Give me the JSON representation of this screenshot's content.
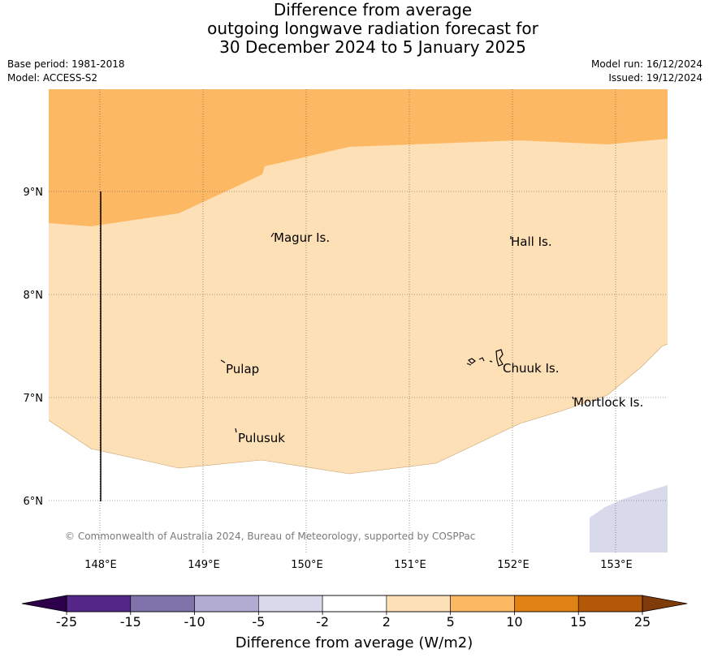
{
  "title": {
    "line1": "Difference from average",
    "line2": "outgoing longwave radiation forecast for",
    "line3": "30 December 2024 to 5 January 2025"
  },
  "meta_left": {
    "base_period": "Base period: 1981-2018",
    "model": "Model: ACCESS-S2"
  },
  "meta_right": {
    "model_run": "Model run: 16/12/2024",
    "issued": "Issued: 19/12/2024"
  },
  "map": {
    "lat_ticks": [
      "9°N",
      "8°N",
      "7°N",
      "6°N"
    ],
    "lon_ticks": [
      "148°E",
      "149°E",
      "150°E",
      "151°E",
      "152°E",
      "153°E"
    ],
    "places": {
      "magur": "Magur Is.",
      "hall": "Hall Is.",
      "pulap": "Pulap",
      "chuuk": "Chuuk Is.",
      "mortlock": "Mortlock Is.",
      "pulusuk": "Pulusuk"
    },
    "copyright": "© Commonwealth of Australia 2024, Bureau of Meteorology, supported by COSPPac",
    "colors": {
      "band_5_10": "#fdb863",
      "band_2_5": "#fee0b6",
      "band_m5_m2": "#d8daeb"
    }
  },
  "colorbar": {
    "title": "Difference from average (W/m2)",
    "ticks": [
      "-25",
      "-15",
      "-10",
      "-5",
      "-2",
      "2",
      "5",
      "10",
      "15",
      "25"
    ],
    "colors": [
      "#2d004b",
      "#542788",
      "#8073ac",
      "#b2abd2",
      "#d8daeb",
      "#ffffff",
      "#fee0b6",
      "#fdb863",
      "#e08214",
      "#b35806",
      "#7f3b08"
    ]
  }
}
